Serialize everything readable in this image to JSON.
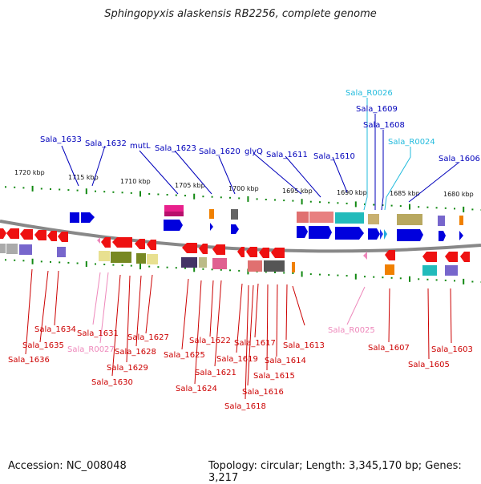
{
  "title": "Sphingopyxis alaskensis RB2256, complete genome",
  "accession": "Accession: NC_008048",
  "summary": "Topology: circular; Length: 3,345,170 bp; Genes: 3,217",
  "colors": {
    "top_label": "#0000bb",
    "rna_top_label": "#22bbdd",
    "bottom_label": "#cc0000",
    "rna_bottom_label": "#ee88bb",
    "backbone": "#888888",
    "tick": "#118811"
  },
  "scale_labels": [
    "1720 kbp",
    "1715 kbp",
    "1710 kbp",
    "1705 kbp",
    "1700 kbp",
    "1695 kbp",
    "1690 kbp",
    "1685 kbp",
    "1680 kbp"
  ],
  "top_labels": [
    "Sala_1633",
    "Sala_1632",
    "mutL",
    "Sala_1623",
    "Sala_1620",
    "glyQ",
    "Sala_1611",
    "Sala_1610",
    "Sala_R0026",
    "Sala_1609",
    "Sala_1608",
    "Sala_R0024",
    "Sala_1606"
  ],
  "bottom_labels": [
    "Sala_1634",
    "Sala_1635",
    "Sala_1636",
    "Sala_1631",
    "Sala_R0027",
    "Sala_1627",
    "Sala_1628",
    "Sala_1629",
    "Sala_1630",
    "Sala_1625",
    "Sala_1622",
    "Sala_1624",
    "Sala_1621",
    "Sala_1619",
    "Sala_1617",
    "Sala_1616",
    "Sala_1618",
    "Sala_1615",
    "Sala_1614",
    "Sala_1613",
    "Sala_R0025",
    "Sala_1607",
    "Sala_1605",
    "Sala_1603"
  ]
}
